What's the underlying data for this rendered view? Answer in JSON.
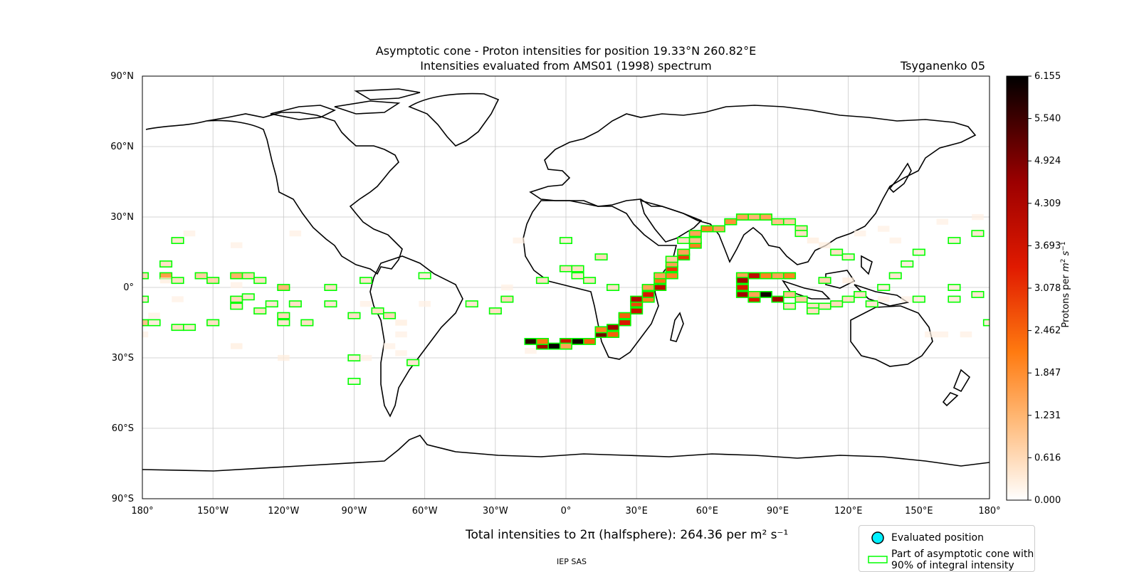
{
  "header": {
    "title_line1": "Asymptotic cone - Proton intensities for position 19.33°N 260.82°E",
    "title_line2": "Intensities evaluated from AMS01 (1998) spectrum",
    "model": "Tsyganenko 05"
  },
  "map": {
    "projection": "equirectangular",
    "lat_ticks": [
      "90°N",
      "60°N",
      "30°N",
      "0°",
      "30°S",
      "60°S",
      "90°S"
    ],
    "lon_ticks": [
      "180°",
      "150°W",
      "120°W",
      "90°W",
      "60°W",
      "30°W",
      "0°",
      "30°E",
      "60°E",
      "90°E",
      "120°E",
      "150°E",
      "180°"
    ],
    "grid": true
  },
  "colorbar": {
    "label": "Protons per m² s⁻¹",
    "ticks": [
      "6.155",
      "5.540",
      "4.924",
      "4.309",
      "3.693",
      "3.078",
      "2.462",
      "1.847",
      "1.231",
      "0.616",
      "0.000"
    ],
    "range": [
      0,
      6.155
    ],
    "colormap": "gist_heat_r"
  },
  "chart_data": {
    "type": "heatmap",
    "title": "Asymptotic cone - Proton intensities for position 19.33°N 260.82°E",
    "subtitle": "Intensities evaluated from AMS01 (1998) spectrum",
    "xlim": [
      -180,
      180
    ],
    "ylim": [
      -90,
      90
    ],
    "cell_size_deg": [
      5,
      2.5
    ],
    "cells": [
      [
        -180,
        5,
        0.6,
        1
      ],
      [
        -180,
        -5,
        0.4,
        1
      ],
      [
        -180,
        -15,
        1.0,
        1
      ],
      [
        -175,
        -12,
        0.2,
        0
      ],
      [
        -175,
        -15,
        0.3,
        1
      ],
      [
        -180,
        -20,
        0.2,
        0
      ],
      [
        -170,
        10,
        0.5,
        1
      ],
      [
        -170,
        5,
        1.6,
        1
      ],
      [
        -170,
        3,
        0.3,
        0
      ],
      [
        -165,
        20,
        0.4,
        1
      ],
      [
        -165,
        -5,
        0.2,
        0
      ],
      [
        -165,
        3,
        0.5,
        1
      ],
      [
        -165,
        -17,
        0.5,
        1
      ],
      [
        -160,
        -17,
        0.4,
        1
      ],
      [
        -160,
        23,
        0.2,
        0
      ],
      [
        -155,
        5,
        0.8,
        1
      ],
      [
        -150,
        3,
        0.7,
        1
      ],
      [
        -150,
        -15,
        0.5,
        1
      ],
      [
        -140,
        5,
        1.3,
        1
      ],
      [
        -140,
        -5,
        0.6,
        1
      ],
      [
        -140,
        -8,
        0.5,
        1
      ],
      [
        -140,
        18,
        0.2,
        0
      ],
      [
        -140,
        -25,
        0.3,
        0
      ],
      [
        -140,
        1,
        0.2,
        0
      ],
      [
        -135,
        5,
        0.7,
        1
      ],
      [
        -135,
        -4,
        0.4,
        1
      ],
      [
        -130,
        3,
        0.5,
        1
      ],
      [
        -130,
        -10,
        0.5,
        1
      ],
      [
        -125,
        -7,
        0.4,
        1
      ],
      [
        -120,
        0,
        1.2,
        1
      ],
      [
        -120,
        -12,
        0.6,
        1
      ],
      [
        -120,
        -15,
        0.4,
        1
      ],
      [
        -120,
        -30,
        0.3,
        0
      ],
      [
        -115,
        23,
        0.2,
        0
      ],
      [
        -115,
        -7,
        0.5,
        1
      ],
      [
        -110,
        -15,
        0.5,
        1
      ],
      [
        -100,
        0,
        0.5,
        1
      ],
      [
        -100,
        -7,
        0.4,
        1
      ],
      [
        -90,
        -12,
        0.5,
        1
      ],
      [
        -90,
        -30,
        0.3,
        1
      ],
      [
        -90,
        -40,
        0.2,
        1
      ],
      [
        -85,
        3,
        0.4,
        1
      ],
      [
        -85,
        -7,
        0.2,
        0
      ],
      [
        -85,
        -30,
        0.2,
        0
      ],
      [
        -80,
        -10,
        0.5,
        1
      ],
      [
        -75,
        -12,
        0.6,
        1
      ],
      [
        -75,
        -25,
        0.2,
        0
      ],
      [
        -70,
        -15,
        0.3,
        0
      ],
      [
        -70,
        -20,
        0.2,
        0
      ],
      [
        -70,
        -28,
        0.2,
        0
      ],
      [
        -65,
        -32,
        0.4,
        1
      ],
      [
        -60,
        5,
        0.3,
        1
      ],
      [
        -60,
        -7,
        0.2,
        0
      ],
      [
        -40,
        -7,
        0.4,
        1
      ],
      [
        -30,
        -10,
        0.5,
        1
      ],
      [
        -25,
        -5,
        0.6,
        1
      ],
      [
        -25,
        0,
        0.2,
        0
      ],
      [
        -20,
        20,
        0.2,
        0
      ],
      [
        -15,
        -23,
        5.8,
        1
      ],
      [
        -15,
        -27,
        0.2,
        0
      ],
      [
        -10,
        -25,
        4.5,
        1
      ],
      [
        -10,
        -23,
        2.2,
        1
      ],
      [
        -10,
        3,
        0.5,
        1
      ],
      [
        -5,
        -25,
        6.1,
        1
      ],
      [
        0,
        -23,
        3.8,
        1
      ],
      [
        0,
        -25,
        1.5,
        1
      ],
      [
        0,
        20,
        0.3,
        1
      ],
      [
        0,
        8,
        0.5,
        1
      ],
      [
        5,
        -23,
        6.0,
        1
      ],
      [
        5,
        8,
        0.5,
        1
      ],
      [
        5,
        5,
        0.4,
        1
      ],
      [
        10,
        -23,
        2.5,
        1
      ],
      [
        10,
        3,
        0.5,
        1
      ],
      [
        15,
        -20,
        5.0,
        1
      ],
      [
        15,
        -18,
        2.0,
        1
      ],
      [
        20,
        -17,
        4.5,
        1
      ],
      [
        20,
        -20,
        2.5,
        1
      ],
      [
        15,
        13,
        0.6,
        1
      ],
      [
        20,
        0,
        0.5,
        1
      ],
      [
        25,
        -15,
        3.5,
        1
      ],
      [
        25,
        -12,
        2.5,
        1
      ],
      [
        30,
        -10,
        3.8,
        1
      ],
      [
        30,
        -7,
        2.8,
        1
      ],
      [
        30,
        -5,
        4.2,
        1
      ],
      [
        35,
        -5,
        2.0,
        1
      ],
      [
        35,
        -3,
        3.5,
        1
      ],
      [
        35,
        0,
        1.5,
        1
      ],
      [
        40,
        0,
        4.0,
        1
      ],
      [
        40,
        3,
        2.2,
        1
      ],
      [
        40,
        5,
        1.5,
        1
      ],
      [
        45,
        8,
        3.0,
        1
      ],
      [
        45,
        5,
        2.0,
        1
      ],
      [
        45,
        10,
        1.5,
        1
      ],
      [
        45,
        12,
        0.8,
        1
      ],
      [
        50,
        13,
        3.0,
        1
      ],
      [
        50,
        15,
        1.5,
        1
      ],
      [
        50,
        20,
        0.5,
        1
      ],
      [
        55,
        18,
        2.0,
        1
      ],
      [
        55,
        20,
        1.0,
        1
      ],
      [
        55,
        23,
        1.5,
        1
      ],
      [
        60,
        25,
        2.0,
        1
      ],
      [
        65,
        25,
        1.5,
        1
      ],
      [
        70,
        28,
        1.8,
        1
      ],
      [
        75,
        30,
        1.5,
        1
      ],
      [
        80,
        30,
        1.2,
        1
      ],
      [
        85,
        30,
        1.5,
        1
      ],
      [
        90,
        28,
        1.0,
        1
      ],
      [
        95,
        28,
        0.8,
        1
      ],
      [
        100,
        25,
        0.6,
        1
      ],
      [
        100,
        23,
        0.5,
        1
      ],
      [
        105,
        20,
        0.3,
        0
      ],
      [
        110,
        18,
        0.3,
        0
      ],
      [
        115,
        15,
        0.5,
        1
      ],
      [
        120,
        13,
        0.4,
        1
      ],
      [
        75,
        5,
        1.5,
        1
      ],
      [
        75,
        3,
        4.5,
        1
      ],
      [
        75,
        0,
        3.5,
        1
      ],
      [
        75,
        -3,
        4.5,
        1
      ],
      [
        80,
        5,
        4.0,
        1
      ],
      [
        80,
        -5,
        3.5,
        1
      ],
      [
        80,
        -3,
        1.5,
        1
      ],
      [
        85,
        -3,
        6.0,
        1
      ],
      [
        85,
        5,
        2.0,
        1
      ],
      [
        90,
        -5,
        4.5,
        1
      ],
      [
        90,
        5,
        1.5,
        1
      ],
      [
        95,
        5,
        2.0,
        1
      ],
      [
        95,
        -3,
        1.0,
        1
      ],
      [
        100,
        -5,
        0.8,
        1
      ],
      [
        95,
        -8,
        0.5,
        1
      ],
      [
        105,
        -8,
        0.5,
        1
      ],
      [
        105,
        -10,
        0.5,
        1
      ],
      [
        110,
        -8,
        0.5,
        1
      ],
      [
        110,
        3,
        0.7,
        1
      ],
      [
        115,
        -7,
        0.6,
        1
      ],
      [
        120,
        -5,
        0.5,
        1
      ],
      [
        120,
        3,
        0.3,
        0
      ],
      [
        125,
        -3,
        0.5,
        1
      ],
      [
        130,
        -7,
        0.4,
        1
      ],
      [
        135,
        0,
        0.3,
        1
      ],
      [
        135,
        -5,
        0.2,
        0
      ],
      [
        140,
        5,
        0.4,
        1
      ],
      [
        145,
        10,
        0.3,
        1
      ],
      [
        145,
        -5,
        0.2,
        0
      ],
      [
        150,
        15,
        0.3,
        1
      ],
      [
        150,
        -5,
        0.3,
        1
      ],
      [
        155,
        -20,
        0.2,
        0
      ],
      [
        160,
        -20,
        0.2,
        0
      ],
      [
        165,
        20,
        0.3,
        1
      ],
      [
        165,
        0,
        0.3,
        1
      ],
      [
        165,
        -5,
        0.3,
        1
      ],
      [
        170,
        -20,
        0.2,
        0
      ],
      [
        175,
        23,
        0.4,
        1
      ],
      [
        175,
        -3,
        0.4,
        1
      ],
      [
        175,
        30,
        0.2,
        0
      ],
      [
        180,
        -15,
        0.3,
        1
      ],
      [
        135,
        25,
        0.2,
        0
      ],
      [
        140,
        20,
        0.2,
        0
      ],
      [
        160,
        28,
        0.2,
        0
      ],
      [
        125,
        23,
        0.2,
        0
      ]
    ],
    "cells_columns": [
      "lon",
      "lat",
      "intensity",
      "in_90pct_cone"
    ],
    "total_intensity": 264.36
  },
  "bottom": {
    "total_text": "Total intensities to 2π (halfsphere): 264.36 per m² s⁻¹",
    "footer": "IEP SAS"
  },
  "legend": {
    "items": [
      {
        "label": "Evaluated position",
        "marker": "circle",
        "color": "#00f0ff"
      },
      {
        "label": "Part of asymptotic cone with 90% of integral intensity",
        "marker": "rect-outline",
        "color": "#00ff00"
      }
    ],
    "line2_a": "Part of asymptotic cone with",
    "line2_b": "90% of integral intensity"
  },
  "colors": {
    "coastline": "#000000",
    "cone_outline": "#00ff00",
    "position_marker": "#00f0ff"
  }
}
